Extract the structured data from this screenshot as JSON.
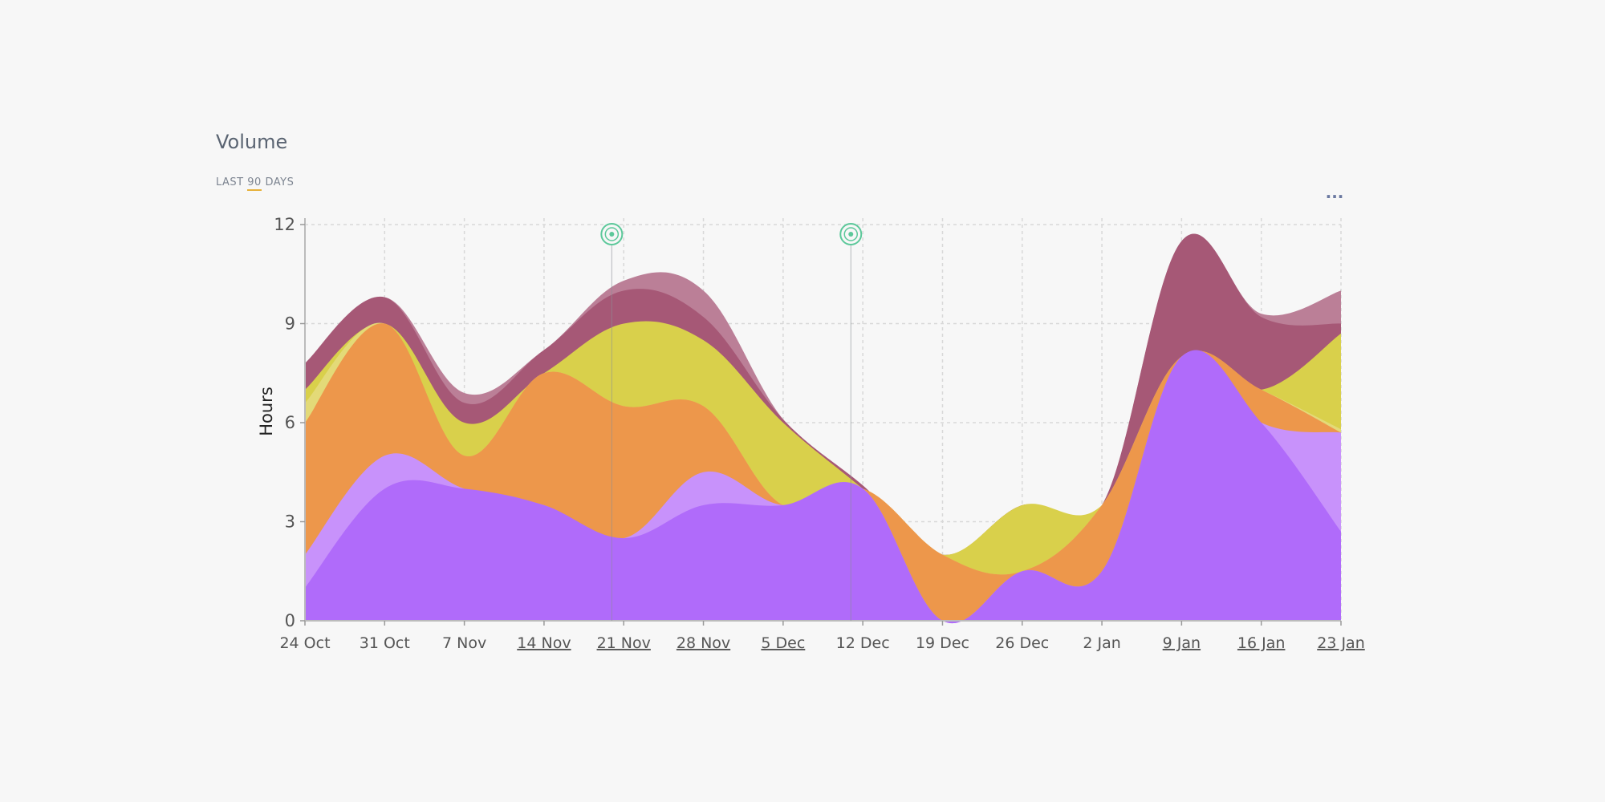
{
  "header": {
    "title": "Volume",
    "subtitle_prefix": "LAST",
    "subtitle_days": "90",
    "subtitle_suffix": "DAYS",
    "menu_icon": "more-horizontal-icon"
  },
  "colors": {
    "purple": "#b06bfa",
    "light_purple": "#c892fb",
    "orange": "#ed974b",
    "yellow": "#d9d04b",
    "light_yellow": "#e3da78",
    "maroon": "#a65876",
    "light_maroon": "#bb7f97",
    "marker": "#5cc89a"
  },
  "chart_data": {
    "type": "area",
    "title": "Volume",
    "ylabel": "Hours",
    "xlabel": "",
    "ylim": [
      0,
      12
    ],
    "yticks": [
      0,
      3,
      6,
      9,
      12
    ],
    "categories": [
      "24 Oct",
      "31 Oct",
      "7 Nov",
      "14 Nov",
      "21 Nov",
      "28 Nov",
      "5 Dec",
      "12 Dec",
      "19 Dec",
      "26 Dec",
      "2 Jan",
      "9 Jan",
      "16 Jan",
      "23 Jan"
    ],
    "underlined_categories": [
      "14 Nov",
      "21 Nov",
      "28 Nov",
      "5 Dec",
      "9 Jan",
      "16 Jan",
      "23 Jan"
    ],
    "stacking": "cumulative layers (series values are cumulative top edges)",
    "series": [
      {
        "name": "Purple",
        "color": "#b06bfa",
        "values": [
          1,
          4,
          4,
          3.5,
          2.5,
          3.5,
          3.5,
          4,
          0,
          1.5,
          1.5,
          8,
          6,
          2.7
        ]
      },
      {
        "name": "Light purple",
        "color": "#c892fb",
        "values": [
          2,
          5,
          4,
          3.5,
          2.5,
          4.5,
          3.5,
          4,
          0,
          1.5,
          1.5,
          8,
          6,
          5.7
        ]
      },
      {
        "name": "Orange",
        "color": "#ed974b",
        "values": [
          6,
          9,
          5,
          7.5,
          6.5,
          6.5,
          3.5,
          4,
          2,
          1.5,
          3.5,
          8,
          7,
          5.7
        ]
      },
      {
        "name": "Light yellow",
        "color": "#e3da78",
        "values": [
          6.6,
          9,
          5,
          7.5,
          6.5,
          6.5,
          3.5,
          4,
          2,
          1.5,
          3.5,
          8,
          7,
          5.8
        ]
      },
      {
        "name": "Yellow",
        "color": "#d9d04b",
        "values": [
          7,
          9,
          6,
          7.5,
          9,
          8.5,
          6,
          4,
          2,
          3.5,
          3.5,
          8,
          7,
          8.7
        ]
      },
      {
        "name": "Maroon",
        "color": "#a65876",
        "values": [
          7.8,
          9.8,
          6.6,
          8.2,
          10,
          9.2,
          6.1,
          4.1,
          2,
          3.5,
          3.5,
          11.5,
          9.2,
          9
        ]
      },
      {
        "name": "Light maroon",
        "color": "#bb7f97",
        "values": [
          7.8,
          9.8,
          6.9,
          8.2,
          10.3,
          10,
          6.1,
          4.1,
          2,
          3.5,
          3.5,
          11.5,
          9.3,
          10
        ]
      }
    ],
    "markers": [
      {
        "x": 3.85,
        "label": "annotation-marker"
      },
      {
        "x": 6.85,
        "label": "annotation-marker"
      }
    ],
    "grid": true
  }
}
